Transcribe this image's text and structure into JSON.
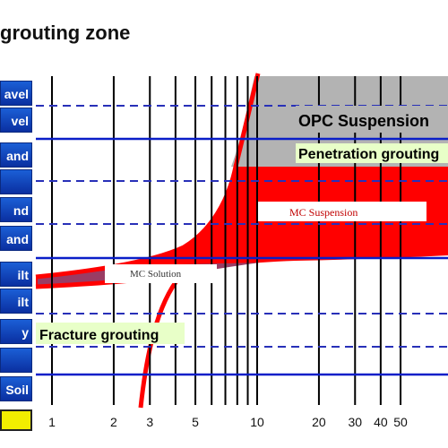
{
  "title": "grouting zone",
  "side_labels": [
    "avel",
    "vel",
    "and",
    "",
    "nd",
    "and",
    "ilt",
    "ilt",
    "y",
    "",
    "Soil"
  ],
  "side_colors": {
    "button": "#1546c0",
    "bottom_box": "#f2ee00"
  },
  "chart_data": {
    "type": "area",
    "xaxis_scale": "log",
    "x_ticks": [
      1,
      2,
      3,
      5,
      10,
      20,
      30,
      40,
      50
    ],
    "regions": [
      {
        "label": "OPC Suspension",
        "color": "#b3b3b3"
      },
      {
        "label": "Penetration grouting",
        "color": "#e8ffc8"
      },
      {
        "label": "MC Suspension",
        "color": "#ff0000"
      },
      {
        "label": "MC Solution",
        "color": "#9a3c64"
      },
      {
        "label": "Fracture grouting",
        "color": "#e8ffc8"
      }
    ],
    "grid": true
  }
}
